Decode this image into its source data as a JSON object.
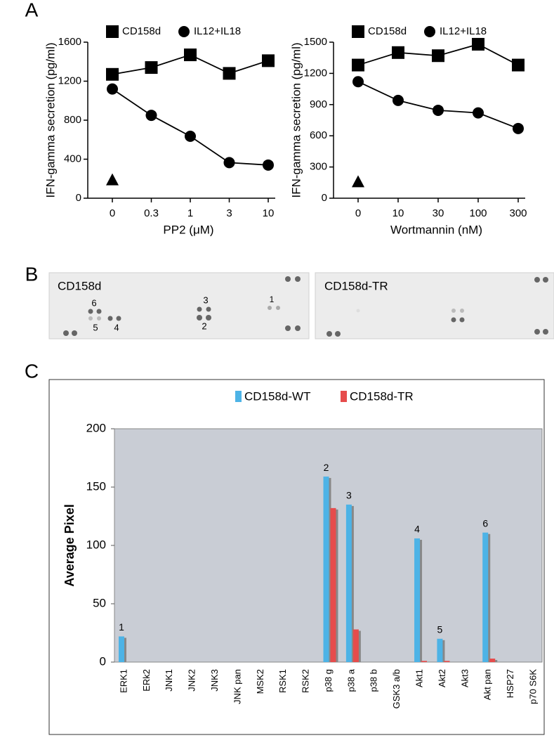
{
  "panel_labels": [
    "A",
    "B",
    "C"
  ],
  "blot": {
    "titles": [
      "CD158d",
      "CD158d-TR"
    ],
    "spot_labels": [
      "1",
      "2",
      "3",
      "4",
      "5",
      "6"
    ]
  },
  "chart_data": [
    {
      "type": "line",
      "x_label": "PP2 (μM)",
      "y_label": "IFN-gamma secretion (pg/ml)",
      "categories": [
        "0",
        "0.3",
        "1",
        "3",
        "10"
      ],
      "series": [
        {
          "name": "CD158d",
          "color": "#000000",
          "marker": "square",
          "values": [
            1270,
            1340,
            1470,
            1280,
            1410
          ]
        },
        {
          "name": "IL12+IL18",
          "color": "#000000",
          "marker": "circle",
          "values": [
            1120,
            850,
            635,
            365,
            340
          ]
        },
        {
          "color": "#000000",
          "marker": "triangle",
          "values": [
            190,
            null,
            null,
            null,
            null
          ]
        }
      ],
      "ylim": [
        0,
        1600
      ],
      "yticks": [
        0,
        400,
        800,
        1200,
        1600
      ]
    },
    {
      "type": "line",
      "x_label": "Wortmannin (nM)",
      "y_label": "IFN-gamma secretion (pg/ml)",
      "categories": [
        "0",
        "10",
        "30",
        "100",
        "300"
      ],
      "series": [
        {
          "name": "CD158d",
          "color": "#000000",
          "marker": "square",
          "values": [
            1280,
            1400,
            1370,
            1480,
            1280
          ]
        },
        {
          "name": "IL12+IL18",
          "color": "#000000",
          "marker": "circle",
          "values": [
            1120,
            940,
            845,
            820,
            670
          ]
        },
        {
          "color": "#000000",
          "marker": "triangle",
          "values": [
            160,
            null,
            null,
            null,
            null
          ]
        }
      ],
      "ylim": [
        0,
        1500
      ],
      "yticks": [
        0,
        300,
        600,
        900,
        1200,
        1500
      ]
    },
    {
      "type": "bar",
      "y_label": "Average Pixel",
      "categories": [
        "ERK1",
        "ERk2",
        "JNK1",
        "JNK2",
        "JNK3",
        "JNK pan",
        "MSK2",
        "RSK1",
        "RSK2",
        "p38 g",
        "p38 a",
        "p38 b",
        "GSK3 a/b",
        "Akt1",
        "Akt2",
        "Akt3",
        "Akt pan",
        "HSP27",
        "p70 S6K"
      ],
      "series": [
        {
          "name": "CD158d-WT",
          "color": "#4db3e6",
          "values": [
            22,
            0,
            0,
            0,
            0,
            0,
            0,
            0,
            0,
            159,
            135,
            0,
            0,
            106,
            20,
            0,
            111,
            0,
            0
          ]
        },
        {
          "name": "CD158d-TR",
          "color": "#e64c4c",
          "values": [
            0,
            0,
            0,
            0,
            0,
            0,
            0,
            0,
            0,
            132,
            28,
            0,
            0,
            1,
            1,
            0,
            3,
            0,
            0
          ]
        }
      ],
      "annotations": [
        "1",
        null,
        null,
        null,
        null,
        null,
        null,
        null,
        null,
        "2",
        "3",
        null,
        null,
        "4",
        "5",
        null,
        "6",
        null,
        null
      ],
      "ylim": [
        0,
        200
      ],
      "yticks": [
        0,
        50,
        100,
        150,
        200
      ],
      "background": "#c9cdd5"
    }
  ]
}
